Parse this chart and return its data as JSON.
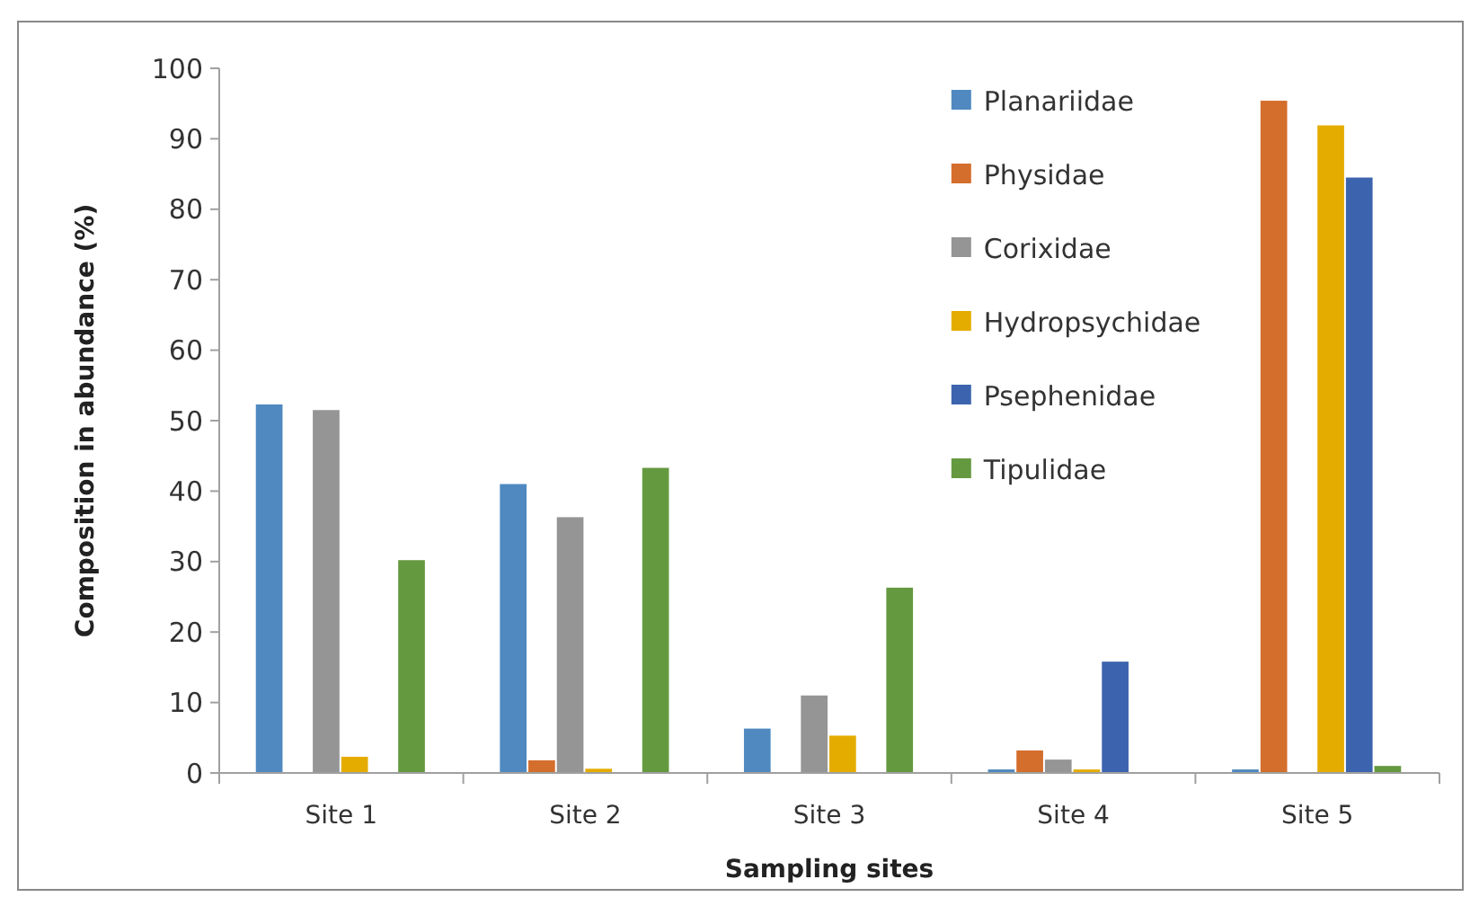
{
  "chart_data": {
    "type": "bar",
    "xlabel": "Sampling sites",
    "ylabel": "Composition in abundance (%)",
    "categories": [
      "Site 1",
      "Site 2",
      "Site 3",
      "Site 4",
      "Site 5"
    ],
    "series": [
      {
        "name": "Planariidae",
        "color": "#4f89c0",
        "values": [
          52.3,
          41,
          6.3,
          0.5,
          0.5
        ]
      },
      {
        "name": "Physidae",
        "color": "#d46e2c",
        "values": [
          0,
          1.8,
          0,
          3.2,
          95.4
        ]
      },
      {
        "name": "Corixidae",
        "color": "#959595",
        "values": [
          51.5,
          36.3,
          11,
          1.9,
          0
        ]
      },
      {
        "name": "Hydropsychidae",
        "color": "#e5ac00",
        "values": [
          2.3,
          0.6,
          5.3,
          0.5,
          91.9
        ]
      },
      {
        "name": "Psephenidae",
        "color": "#3c64ae",
        "values": [
          0,
          0,
          0,
          15.8,
          84.5
        ]
      },
      {
        "name": "Tipulidae",
        "color": "#64993f",
        "values": [
          30.2,
          43.3,
          26.3,
          0,
          1
        ]
      }
    ],
    "ylim": [
      0,
      100
    ],
    "yticks": [
      0,
      10,
      20,
      30,
      40,
      50,
      60,
      70,
      80,
      90,
      100
    ],
    "grid": false,
    "legend": "top right"
  }
}
